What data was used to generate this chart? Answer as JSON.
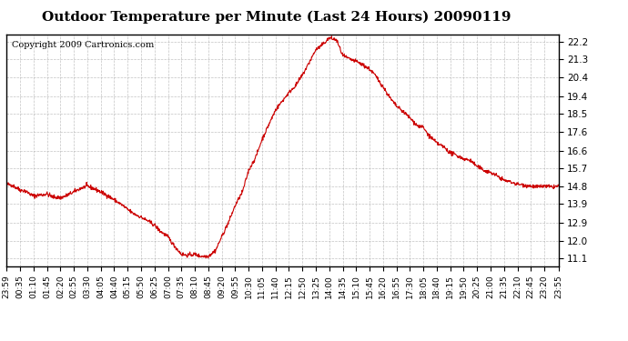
{
  "title": "Outdoor Temperature per Minute (Last 24 Hours) 20090119",
  "copyright": "Copyright 2009 Cartronics.com",
  "line_color": "#cc0000",
  "background_color": "#ffffff",
  "plot_background": "#ffffff",
  "grid_color": "#aaaaaa",
  "yticks": [
    11.1,
    12.0,
    12.9,
    13.9,
    14.8,
    15.7,
    16.6,
    17.6,
    18.5,
    19.4,
    20.4,
    21.3,
    22.2
  ],
  "ylim": [
    10.7,
    22.6
  ],
  "xtick_labels": [
    "23:59",
    "00:35",
    "01:10",
    "01:45",
    "02:20",
    "02:55",
    "03:30",
    "04:05",
    "04:40",
    "05:15",
    "05:50",
    "06:25",
    "07:00",
    "07:35",
    "08:10",
    "08:45",
    "09:20",
    "09:55",
    "10:30",
    "11:05",
    "11:40",
    "12:15",
    "12:50",
    "13:25",
    "14:00",
    "14:35",
    "15:10",
    "15:45",
    "16:20",
    "16:55",
    "17:30",
    "18:05",
    "18:40",
    "19:15",
    "19:50",
    "20:25",
    "21:00",
    "21:35",
    "22:10",
    "22:45",
    "23:20",
    "23:55"
  ],
  "key_times": [
    0,
    36,
    71,
    106,
    141,
    176,
    211,
    246,
    281,
    316,
    351,
    386,
    421,
    456,
    491,
    526,
    561,
    596,
    631,
    666,
    701,
    736,
    771,
    806,
    841,
    876,
    911,
    946,
    981,
    1016,
    1051,
    1086,
    1121,
    1156,
    1191,
    1226,
    1261,
    1296,
    1331,
    1366,
    1401,
    1439
  ],
  "key_values": [
    14.9,
    14.6,
    14.3,
    14.4,
    14.2,
    14.5,
    14.8,
    14.5,
    14.1,
    13.6,
    13.2,
    12.8,
    12.2,
    11.3,
    11.3,
    11.2,
    12.2,
    13.8,
    15.6,
    17.2,
    18.7,
    19.6,
    20.5,
    22.3,
    21.5,
    20.8,
    19.9,
    18.9,
    17.8,
    17.0,
    16.5,
    16.2,
    15.8,
    15.5,
    15.1,
    14.9,
    14.8,
    14.7,
    14.8,
    14.7,
    14.8,
    14.8
  ]
}
